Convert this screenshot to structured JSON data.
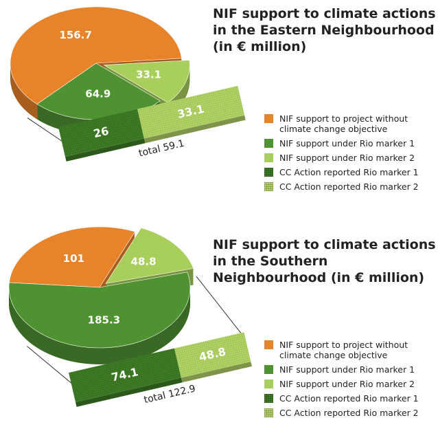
{
  "chart_data": [
    {
      "type": "pie",
      "title": "NIF support to climate actions in the Eastern Neighbourhood (in € million)",
      "categories": [
        "NIF support to project without climate change objective",
        "NIF support under Rio marker 1",
        "NIF support under Rio marker 2"
      ],
      "values": [
        156.7,
        64.9,
        33.1
      ],
      "colors": [
        "#e8832a",
        "#4f9232",
        "#a8cf5c"
      ],
      "breakout": {
        "type": "bar",
        "categories": [
          "CC Action reported Rio marker 1",
          "CC Action reported Rio marker 2"
        ],
        "values": [
          26,
          33.1
        ],
        "colors": [
          "#3f7d27",
          "#b3d46a"
        ],
        "total_label": "total 59.1"
      }
    },
    {
      "type": "pie",
      "title": "NIF support to climate actions in the Southern Neighbourhood (in € million)",
      "categories": [
        "NIF support to project without climate change objective",
        "NIF support under Rio marker 1",
        "NIF support under Rio marker 2"
      ],
      "values": [
        101,
        185.3,
        48.8
      ],
      "colors": [
        "#e8832a",
        "#4f9232",
        "#a8cf5c"
      ],
      "breakout": {
        "type": "bar",
        "categories": [
          "CC Action reported Rio marker 1",
          "CC Action reported Rio marker 2"
        ],
        "values": [
          74.1,
          48.8
        ],
        "colors": [
          "#3f7d27",
          "#b3d46a"
        ],
        "total_label": "total 122.9"
      }
    }
  ]
}
